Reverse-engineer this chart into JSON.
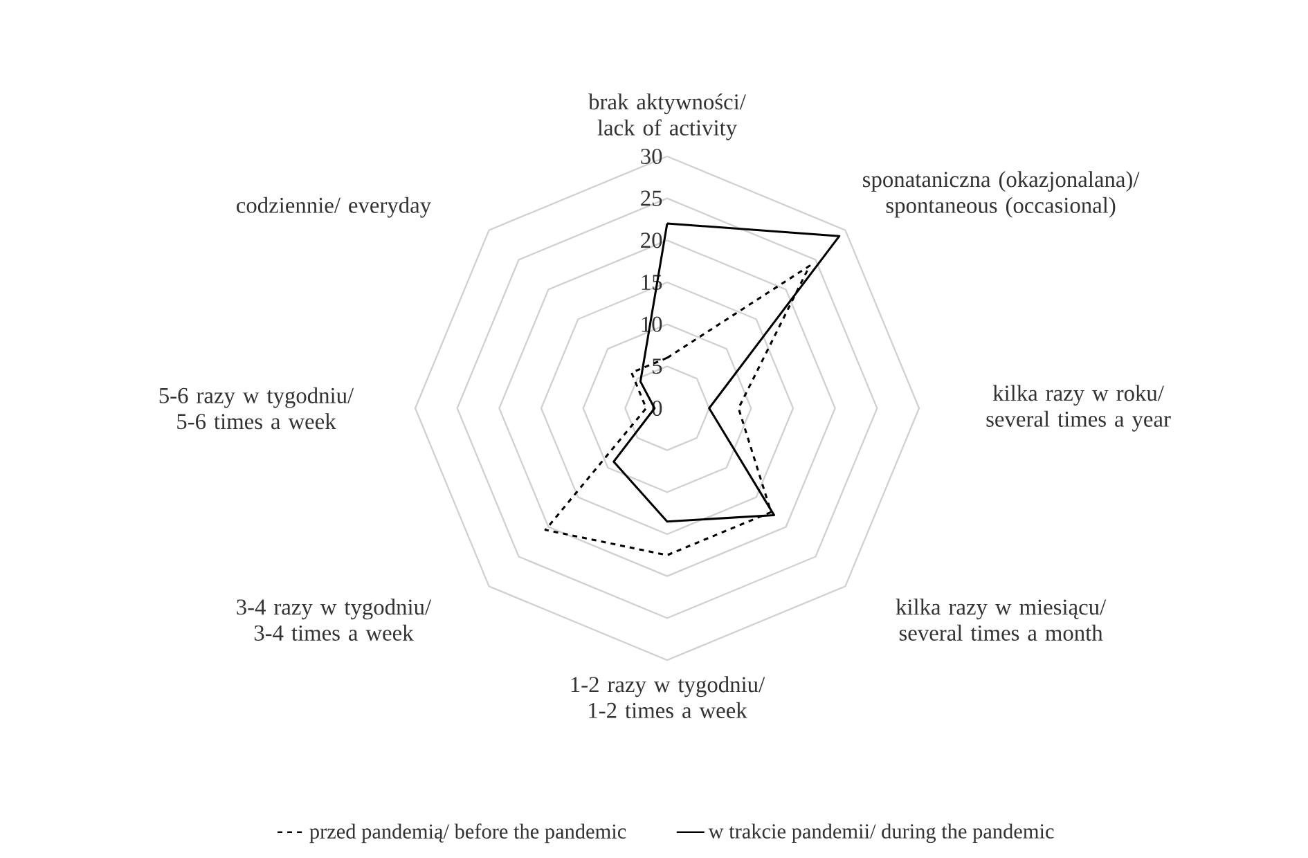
{
  "chart_data": {
    "type": "radar",
    "categories": [
      "brak aktywności/ lack of activity",
      "sponataniczna (okazjonalana)/ spontaneous (occasional)",
      "kilka razy w roku/ several times a year",
      "kilka razy w miesiącu/ several times a month",
      "1-2 razy w tygodniu/ 1-2 times a week",
      "3-4 razy w tygodniu/ 3-4 times a week",
      "5-6 razy w tygodniu/ 5-6 times a week",
      "codziennie/ everyday"
    ],
    "series": [
      {
        "name": "przed pandemią/ before the pandemic",
        "color": "#000000",
        "line_style": "dashed",
        "values": [
          6,
          24,
          8.5,
          17.5,
          17.5,
          20.5,
          2.5,
          6
        ]
      },
      {
        "name": "w trakcie pandemii/ during the pandemic",
        "color": "#000000",
        "line_style": "solid",
        "values": [
          22,
          29,
          5,
          18,
          13.5,
          9,
          1.5,
          4.5
        ]
      }
    ],
    "ylim": [
      0,
      30
    ],
    "yticks": [
      0,
      5,
      10,
      15,
      20,
      25,
      30
    ],
    "grid": true,
    "legend": "bottom",
    "marker": "none"
  }
}
